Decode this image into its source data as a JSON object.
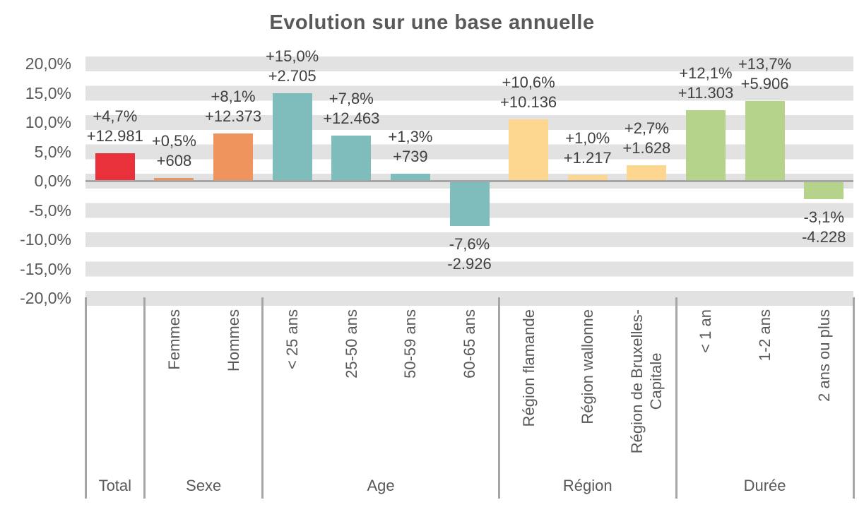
{
  "title": "Evolution sur une base annuelle",
  "colors": {
    "grid_stripe": "#e2e2e2",
    "axis_line": "#a6a6a6",
    "axis_text": "#595959",
    "data_label_text": "#404040"
  },
  "chart_data": {
    "type": "bar",
    "title": "Evolution sur une base annuelle",
    "xlabel": "",
    "ylabel": "",
    "ylim": [
      -20,
      20
    ],
    "tick_step": 5,
    "grid_bands": true,
    "legend": "none",
    "y_axis": {
      "tick_labels": [
        "20,0%",
        "15,0%",
        "10,0%",
        "5,0%",
        "0,0%",
        "-5,0%",
        "-10,0%",
        "-15,0%",
        "-20,0%"
      ],
      "tick_values": [
        20,
        15,
        10,
        5,
        0,
        -5,
        -10,
        -15,
        -20
      ]
    },
    "groups": [
      {
        "label": "Total",
        "color": "#e8313a",
        "bars": [
          {
            "label": "",
            "value": 4.7,
            "abs_value": 12981,
            "pct_label": "+4,7%",
            "abs_label": "+12.981"
          }
        ]
      },
      {
        "label": "Sexe",
        "color": "#f0945d",
        "bars": [
          {
            "label": "Femmes",
            "value": 0.5,
            "abs_value": 608,
            "pct_label": "+0,5%",
            "abs_label": "+608"
          },
          {
            "label": "Hommes",
            "value": 8.1,
            "abs_value": 12373,
            "pct_label": "+8,1%",
            "abs_label": "+12.373"
          }
        ]
      },
      {
        "label": "Age",
        "color": "#7fbdbd",
        "bars": [
          {
            "label": "< 25 ans",
            "value": 15.0,
            "abs_value": 2705,
            "pct_label": "+15,0%",
            "abs_label": "+2.705"
          },
          {
            "label": "25-50 ans",
            "value": 7.8,
            "abs_value": 12463,
            "pct_label": "+7,8%",
            "abs_label": "+12.463"
          },
          {
            "label": "50-59 ans",
            "value": 1.3,
            "abs_value": 739,
            "pct_label": "+1,3%",
            "abs_label": "+739"
          },
          {
            "label": "60-65 ans",
            "value": -7.6,
            "abs_value": -2926,
            "pct_label": "-7,6%",
            "abs_label": "-2.926"
          }
        ]
      },
      {
        "label": "Région",
        "color": "#fdd78f",
        "bars": [
          {
            "label": "Région flamande",
            "value": 10.6,
            "abs_value": 10136,
            "pct_label": "+10,6%",
            "abs_label": "+10.136"
          },
          {
            "label": "Région wallonne",
            "value": 1.0,
            "abs_value": 1217,
            "pct_label": "+1,0%",
            "abs_label": "+1.217"
          },
          {
            "label": "Région de Bruxelles-\nCapitale",
            "value": 2.7,
            "abs_value": 1628,
            "pct_label": "+2,7%",
            "abs_label": "+1.628"
          }
        ]
      },
      {
        "label": "Durée",
        "color": "#b5d38b",
        "bars": [
          {
            "label": "< 1 an",
            "value": 12.1,
            "abs_value": 11303,
            "pct_label": "+12,1%",
            "abs_label": "+11.303"
          },
          {
            "label": "1-2 ans",
            "value": 13.7,
            "abs_value": 5906,
            "pct_label": "+13,7%",
            "abs_label": "+5.906"
          },
          {
            "label": "2 ans ou plus",
            "value": -3.1,
            "abs_value": -4228,
            "pct_label": "-3,1%",
            "abs_label": "-4.228"
          }
        ]
      }
    ]
  }
}
